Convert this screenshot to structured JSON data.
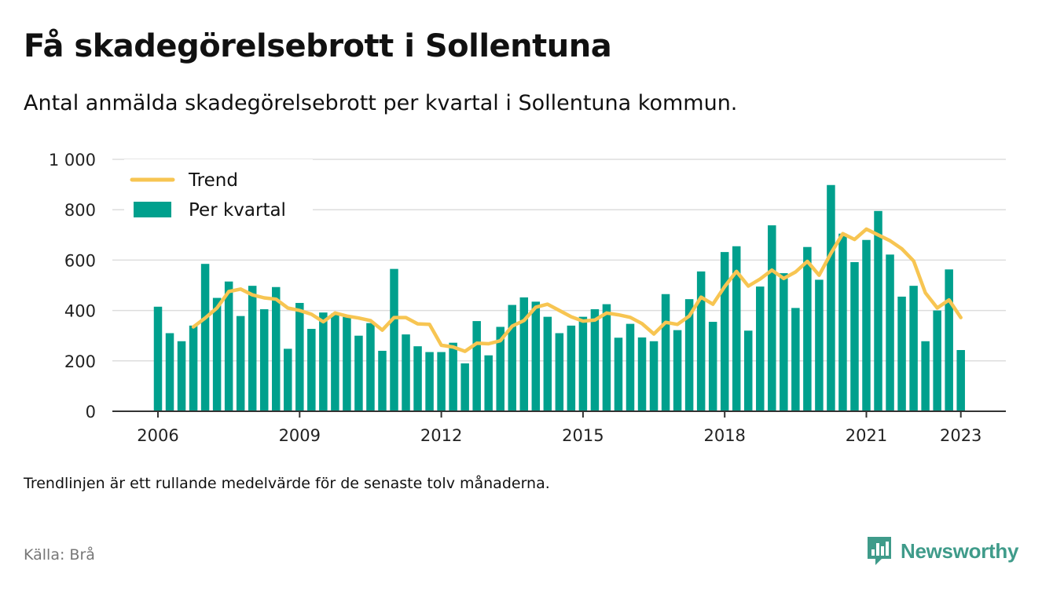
{
  "title": "Få skadegörelsebrott i Sollentuna",
  "subtitle": "Antal anmälda skadegörelsebrott per kvartal i Sollentuna kommun.",
  "footnote": "Trendlinjen är ett rullande medelvärde för de senaste tolv månaderna.",
  "source": "Källa: Brå",
  "brand": {
    "name": "Newsworthy",
    "logo_icon": "newsworthy-logo-icon",
    "color": "#3f9b8a"
  },
  "colors": {
    "bar": "#00a08d",
    "trend": "#f7c552",
    "grid": "#dddddd",
    "axis": "#333333"
  },
  "chart_data": {
    "type": "bar",
    "title": "",
    "xlabel": "",
    "ylabel": "",
    "ylim": [
      0,
      1000
    ],
    "y_ticks": [
      0,
      200,
      400,
      600,
      800,
      1000
    ],
    "y_tick_labels": [
      "0",
      "200",
      "400",
      "600",
      "800",
      "1 000"
    ],
    "x_ticks": [
      2006,
      2009,
      2012,
      2015,
      2018,
      2021,
      2023
    ],
    "x_tick_labels": [
      "2006",
      "2009",
      "2012",
      "2015",
      "2018",
      "2021",
      "2023"
    ],
    "legend_position": "top-left",
    "grid": true,
    "categories": [
      "2006 Q1",
      "2006 Q2",
      "2006 Q3",
      "2006 Q4",
      "2007 Q1",
      "2007 Q2",
      "2007 Q3",
      "2007 Q4",
      "2008 Q1",
      "2008 Q2",
      "2008 Q3",
      "2008 Q4",
      "2009 Q1",
      "2009 Q2",
      "2009 Q3",
      "2009 Q4",
      "2010 Q1",
      "2010 Q2",
      "2010 Q3",
      "2010 Q4",
      "2011 Q1",
      "2011 Q2",
      "2011 Q3",
      "2011 Q4",
      "2012 Q1",
      "2012 Q2",
      "2012 Q3",
      "2012 Q4",
      "2013 Q1",
      "2013 Q2",
      "2013 Q3",
      "2013 Q4",
      "2014 Q1",
      "2014 Q2",
      "2014 Q3",
      "2014 Q4",
      "2015 Q1",
      "2015 Q2",
      "2015 Q3",
      "2015 Q4",
      "2016 Q1",
      "2016 Q2",
      "2016 Q3",
      "2016 Q4",
      "2017 Q1",
      "2017 Q2",
      "2017 Q3",
      "2017 Q4",
      "2018 Q1",
      "2018 Q2",
      "2018 Q3",
      "2018 Q4",
      "2019 Q1",
      "2019 Q2",
      "2019 Q3",
      "2019 Q4",
      "2020 Q1",
      "2020 Q2",
      "2020 Q3",
      "2020 Q4",
      "2021 Q1",
      "2021 Q2",
      "2021 Q3",
      "2021 Q4",
      "2022 Q1",
      "2022 Q2",
      "2022 Q3",
      "2022 Q4",
      "2023 Q1"
    ],
    "series": [
      {
        "name": "Per kvartal",
        "type": "bar",
        "values": [
          415,
          310,
          278,
          340,
          585,
          450,
          515,
          378,
          498,
          405,
          493,
          248,
          430,
          327,
          392,
          388,
          375,
          300,
          350,
          240,
          565,
          305,
          258,
          235,
          235,
          272,
          190,
          358,
          222,
          335,
          422,
          452,
          435,
          375,
          310,
          340,
          375,
          405,
          425,
          292,
          347,
          293,
          278,
          465,
          322,
          445,
          555,
          355,
          632,
          655,
          320,
          495,
          738,
          548,
          410,
          652,
          522,
          898,
          705,
          592,
          680,
          795,
          622,
          455,
          498,
          278,
          400,
          563,
          243
        ]
      },
      {
        "name": "Trend",
        "type": "line",
        "values": [
          null,
          null,
          null,
          335,
          370,
          410,
          475,
          485,
          462,
          450,
          445,
          410,
          400,
          385,
          355,
          390,
          378,
          370,
          360,
          322,
          372,
          372,
          347,
          345,
          262,
          255,
          238,
          270,
          268,
          280,
          338,
          360,
          413,
          425,
          400,
          375,
          358,
          362,
          390,
          383,
          373,
          348,
          307,
          353,
          345,
          378,
          453,
          425,
          495,
          555,
          497,
          525,
          560,
          527,
          553,
          595,
          540,
          627,
          705,
          682,
          723,
          700,
          677,
          645,
          597,
          470,
          410,
          442,
          372
        ]
      }
    ]
  }
}
